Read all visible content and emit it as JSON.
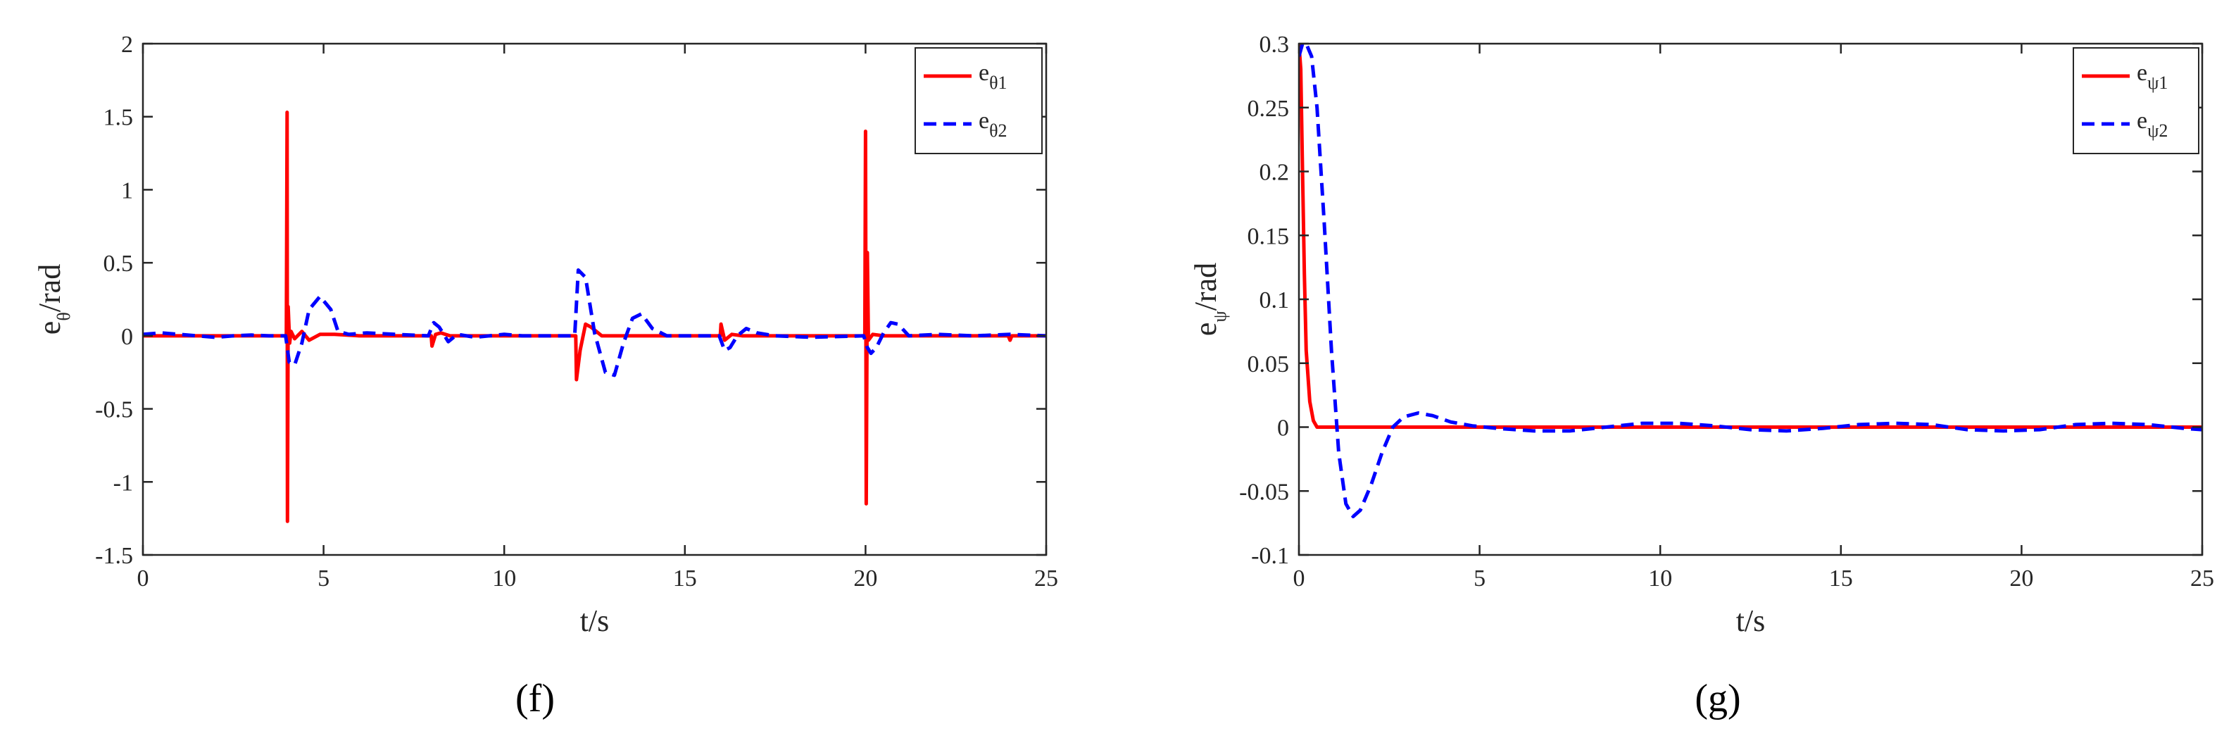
{
  "chart_data": [
    {
      "type": "line",
      "panel_label": "(f)",
      "xlabel": "t/s",
      "ylabel": {
        "base": "e",
        "sub": "θ",
        "unit": "/rad"
      },
      "xlim": [
        0,
        25
      ],
      "ylim": [
        -1.5,
        2
      ],
      "xticks": [
        0,
        5,
        10,
        15,
        20,
        25
      ],
      "xtick_labels": [
        "0",
        "5",
        "10",
        "15",
        "20",
        "25"
      ],
      "yticks": [
        -1.5,
        -1,
        -0.5,
        0,
        0.5,
        1,
        1.5,
        2
      ],
      "ytick_labels": [
        "-1.5",
        "-1",
        "-0.5",
        "0",
        "0.5",
        "1",
        "1.5",
        "2"
      ],
      "legend_position": "top-right",
      "series": [
        {
          "name": "eθ1",
          "base": "e",
          "sub": "θ1",
          "color": "#ff0000",
          "style": "solid",
          "points": [
            [
              0,
              0
            ],
            [
              3.97,
              0
            ],
            [
              3.99,
              1.53
            ],
            [
              4.0,
              -1.27
            ],
            [
              4.02,
              0.2
            ],
            [
              4.06,
              -0.05
            ],
            [
              4.1,
              0.03
            ],
            [
              4.2,
              -0.02
            ],
            [
              4.4,
              0.03
            ],
            [
              4.6,
              -0.03
            ],
            [
              4.9,
              0.01
            ],
            [
              5.3,
              0.01
            ],
            [
              6,
              0
            ],
            [
              7.98,
              0
            ],
            [
              8.0,
              -0.07
            ],
            [
              8.1,
              0.01
            ],
            [
              8.25,
              0.02
            ],
            [
              8.5,
              0
            ],
            [
              11.98,
              0
            ],
            [
              12.0,
              -0.3
            ],
            [
              12.1,
              -0.1
            ],
            [
              12.25,
              0.08
            ],
            [
              12.4,
              0.06
            ],
            [
              12.7,
              0
            ],
            [
              15.98,
              0
            ],
            [
              16.0,
              0.08
            ],
            [
              16.1,
              -0.03
            ],
            [
              16.3,
              0.01
            ],
            [
              16.6,
              0
            ],
            [
              19.98,
              0
            ],
            [
              20.0,
              1.4
            ],
            [
              20.02,
              -1.15
            ],
            [
              20.05,
              0.57
            ],
            [
              20.08,
              -0.03
            ],
            [
              20.2,
              0.01
            ],
            [
              20.5,
              0
            ],
            [
              23.95,
              0
            ],
            [
              24.0,
              -0.03
            ],
            [
              24.05,
              0
            ],
            [
              25,
              0
            ]
          ]
        },
        {
          "name": "eθ2",
          "base": "e",
          "sub": "θ2",
          "color": "#0000ff",
          "style": "dashed",
          "points": [
            [
              0,
              0.01
            ],
            [
              0.5,
              0.02
            ],
            [
              1,
              0.01
            ],
            [
              1.5,
              0
            ],
            [
              2,
              -0.01
            ],
            [
              2.5,
              0
            ],
            [
              3,
              0.005
            ],
            [
              3.5,
              0
            ],
            [
              3.95,
              0
            ],
            [
              4.05,
              -0.18
            ],
            [
              4.2,
              -0.2
            ],
            [
              4.4,
              -0.05
            ],
            [
              4.6,
              0.18
            ],
            [
              4.9,
              0.27
            ],
            [
              5.2,
              0.18
            ],
            [
              5.4,
              0.03
            ],
            [
              5.7,
              0.01
            ],
            [
              6.2,
              0.02
            ],
            [
              7,
              0.01
            ],
            [
              7.9,
              0
            ],
            [
              8.05,
              0.09
            ],
            [
              8.2,
              0.06
            ],
            [
              8.45,
              -0.04
            ],
            [
              8.7,
              0.01
            ],
            [
              9.2,
              -0.01
            ],
            [
              10,
              0.01
            ],
            [
              10.5,
              0
            ],
            [
              11.95,
              0
            ],
            [
              12.05,
              0.45
            ],
            [
              12.25,
              0.4
            ],
            [
              12.5,
              0.02
            ],
            [
              12.8,
              -0.25
            ],
            [
              13.05,
              -0.27
            ],
            [
              13.3,
              -0.05
            ],
            [
              13.55,
              0.12
            ],
            [
              13.8,
              0.15
            ],
            [
              14.1,
              0.05
            ],
            [
              14.5,
              0
            ],
            [
              15.95,
              0
            ],
            [
              16.1,
              -0.1
            ],
            [
              16.25,
              -0.08
            ],
            [
              16.45,
              0
            ],
            [
              16.7,
              0.05
            ],
            [
              17,
              0.02
            ],
            [
              17.5,
              0
            ],
            [
              18.5,
              -0.01
            ],
            [
              19.95,
              0
            ],
            [
              20.05,
              -0.08
            ],
            [
              20.15,
              -0.12
            ],
            [
              20.3,
              -0.08
            ],
            [
              20.5,
              0.02
            ],
            [
              20.7,
              0.09
            ],
            [
              20.9,
              0.08
            ],
            [
              21.2,
              0
            ],
            [
              22,
              0.01
            ],
            [
              23,
              0
            ],
            [
              24,
              0.01
            ],
            [
              25,
              0
            ]
          ]
        }
      ]
    },
    {
      "type": "line",
      "panel_label": "(g)",
      "xlabel": "t/s",
      "ylabel": {
        "base": "e",
        "sub": "ψ",
        "unit": "/rad"
      },
      "xlim": [
        0,
        25
      ],
      "ylim": [
        -0.1,
        0.3
      ],
      "xticks": [
        0,
        5,
        10,
        15,
        20,
        25
      ],
      "xtick_labels": [
        "0",
        "5",
        "10",
        "15",
        "20",
        "25"
      ],
      "yticks": [
        -0.1,
        -0.05,
        0,
        0.05,
        0.1,
        0.15,
        0.2,
        0.25,
        0.3
      ],
      "ytick_labels": [
        "-0.1",
        "-0.05",
        "0",
        "0.05",
        "0.1",
        "0.15",
        "0.2",
        "0.25",
        "0.3"
      ],
      "legend_position": "top-right",
      "series": [
        {
          "name": "eψ1",
          "base": "e",
          "sub": "ψ1",
          "color": "#ff0000",
          "style": "solid",
          "points": [
            [
              0,
              0.3
            ],
            [
              0.05,
              0.28
            ],
            [
              0.1,
              0.2
            ],
            [
              0.15,
              0.12
            ],
            [
              0.2,
              0.06
            ],
            [
              0.3,
              0.02
            ],
            [
              0.4,
              0.005
            ],
            [
              0.5,
              0
            ],
            [
              25,
              0
            ]
          ]
        },
        {
          "name": "eψ2",
          "base": "e",
          "sub": "ψ2",
          "color": "#0000ff",
          "style": "dashed",
          "points": [
            [
              0,
              0.29
            ],
            [
              0.1,
              0.3
            ],
            [
              0.2,
              0.3
            ],
            [
              0.35,
              0.29
            ],
            [
              0.5,
              0.25
            ],
            [
              0.7,
              0.16
            ],
            [
              0.9,
              0.06
            ],
            [
              1.1,
              -0.02
            ],
            [
              1.3,
              -0.06
            ],
            [
              1.5,
              -0.07
            ],
            [
              1.7,
              -0.065
            ],
            [
              2.0,
              -0.045
            ],
            [
              2.3,
              -0.02
            ],
            [
              2.6,
              0
            ],
            [
              2.9,
              0.008
            ],
            [
              3.3,
              0.011
            ],
            [
              3.7,
              0.009
            ],
            [
              4.2,
              0.004
            ],
            [
              4.8,
              0.001
            ],
            [
              5.5,
              -0.001
            ],
            [
              6.5,
              -0.003
            ],
            [
              7.5,
              -0.003
            ],
            [
              8.5,
              0
            ],
            [
              9.5,
              0.003
            ],
            [
              10.5,
              0.003
            ],
            [
              11.5,
              0.001
            ],
            [
              12.5,
              -0.002
            ],
            [
              13.5,
              -0.003
            ],
            [
              14.5,
              -0.001
            ],
            [
              15.5,
              0.002
            ],
            [
              16.5,
              0.003
            ],
            [
              17.5,
              0.002
            ],
            [
              18.5,
              -0.002
            ],
            [
              19.5,
              -0.003
            ],
            [
              20.5,
              -0.002
            ],
            [
              21.5,
              0.002
            ],
            [
              22.5,
              0.003
            ],
            [
              23.5,
              0.002
            ],
            [
              24.5,
              -0.001
            ],
            [
              25,
              -0.002
            ]
          ]
        }
      ]
    }
  ]
}
